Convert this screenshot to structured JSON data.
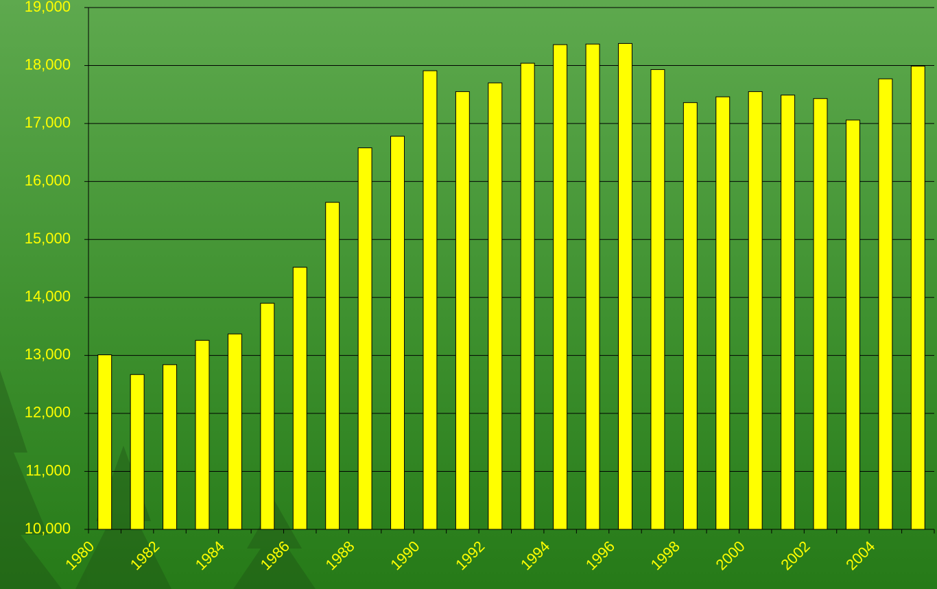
{
  "chart_data": {
    "type": "bar",
    "categories": [
      "1980",
      null,
      "1982",
      null,
      "1984",
      null,
      "1986",
      null,
      "1988",
      null,
      "1990",
      null,
      "1992",
      null,
      "1994",
      null,
      "1996",
      null,
      "1998",
      null,
      "2000",
      null,
      "2002",
      null,
      "2004",
      null
    ],
    "values": [
      13010,
      12670,
      12840,
      13260,
      13370,
      13900,
      14520,
      15640,
      16580,
      16780,
      17910,
      17550,
      17700,
      18040,
      18360,
      18370,
      18380,
      17930,
      17360,
      17460,
      17550,
      17490,
      17430,
      17060,
      17770,
      17990
    ],
    "color": "#ffff00",
    "ylim": [
      10000,
      19000
    ],
    "yticks": [
      {
        "value": 10000,
        "label": "10,000"
      },
      {
        "value": 11000,
        "label": "11,000"
      },
      {
        "value": 12000,
        "label": "12,000"
      },
      {
        "value": 13000,
        "label": "13,000"
      },
      {
        "value": 14000,
        "label": "14,000"
      },
      {
        "value": 15000,
        "label": "15,000"
      },
      {
        "value": 16000,
        "label": "16,000"
      },
      {
        "value": 17000,
        "label": "17,000"
      },
      {
        "value": 18000,
        "label": "18,000"
      },
      {
        "value": 19000,
        "label": "19,000"
      }
    ],
    "grid": true
  }
}
